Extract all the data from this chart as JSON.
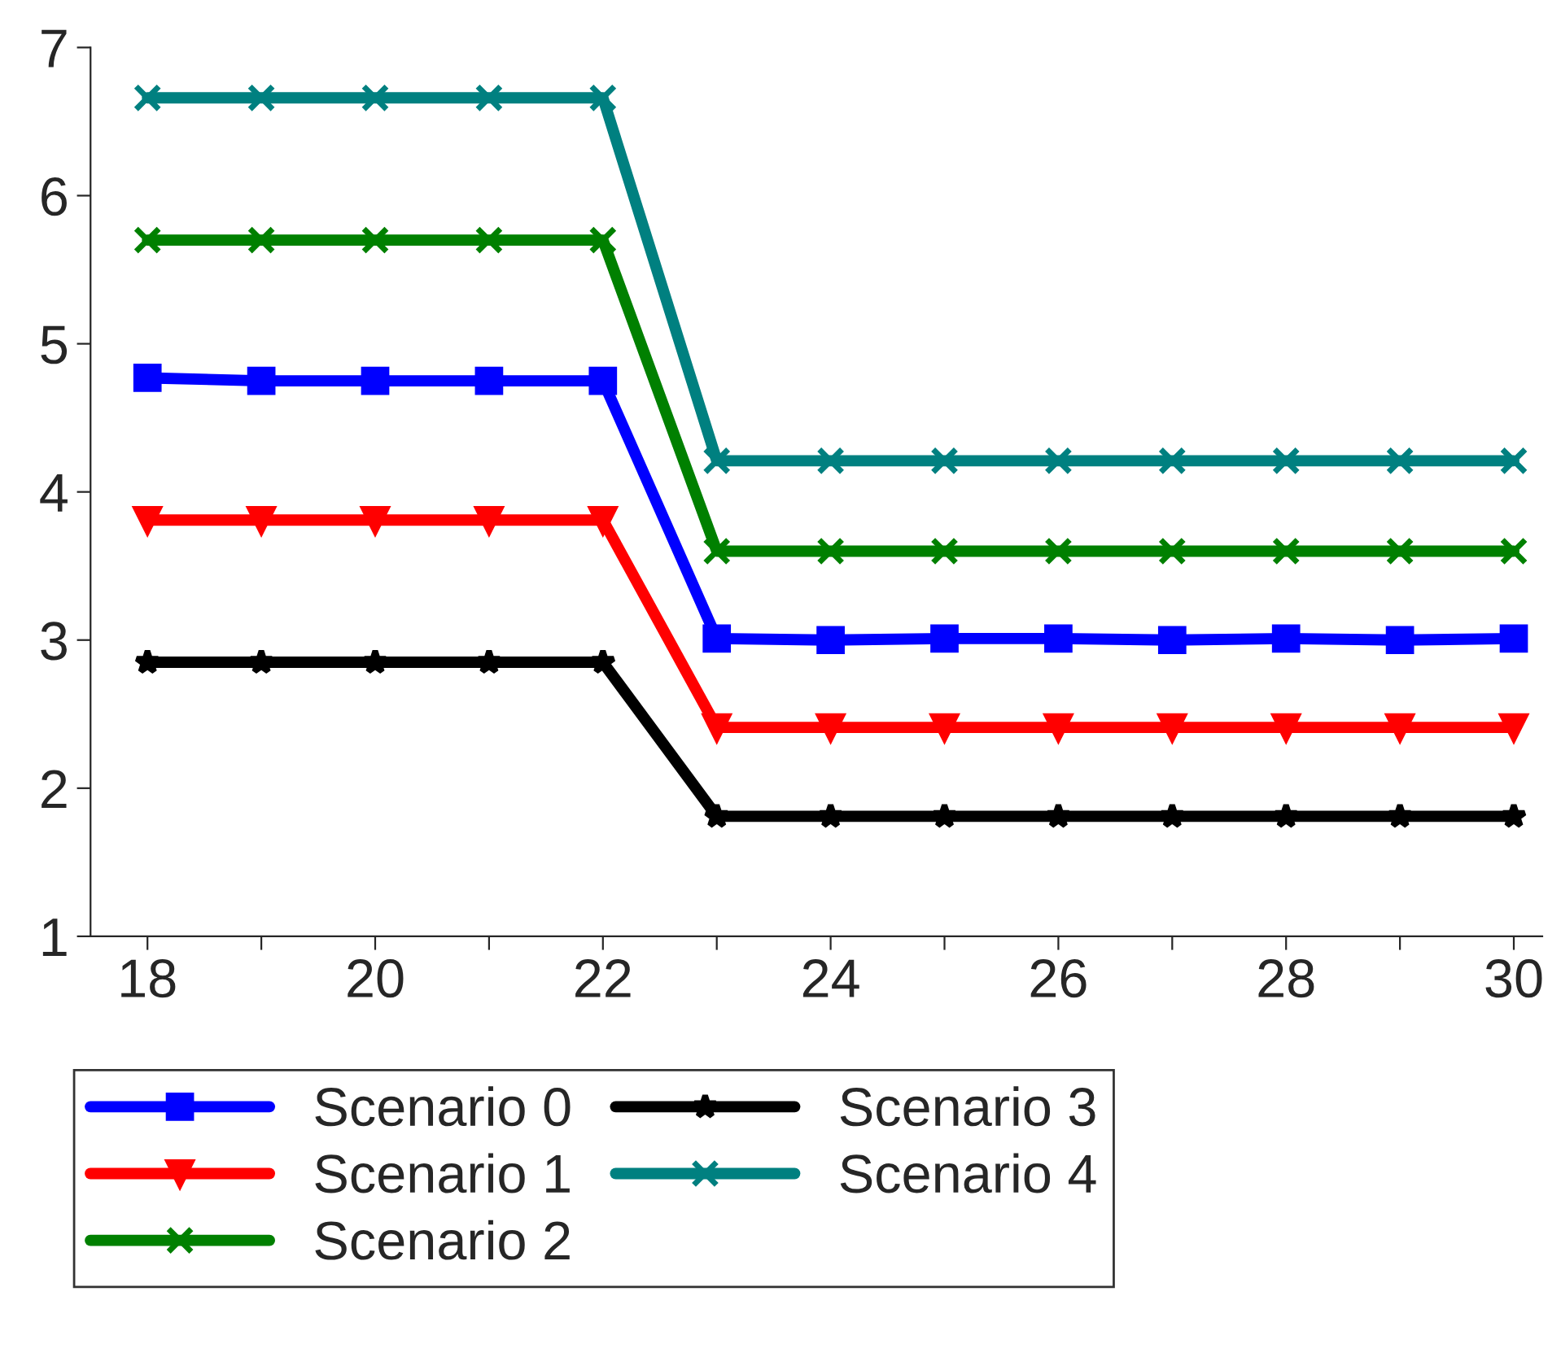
{
  "chart_data": {
    "type": "line",
    "x": [
      18,
      19,
      20,
      21,
      22,
      23,
      24,
      25,
      26,
      27,
      28,
      29,
      30
    ],
    "series": [
      {
        "name": "Scenario 0",
        "color": "#0000ff",
        "marker": "square",
        "values": [
          4.77,
          4.75,
          4.75,
          4.75,
          4.75,
          3.01,
          3.0,
          3.01,
          3.01,
          3.0,
          3.01,
          3.0,
          3.01
        ]
      },
      {
        "name": "Scenario 1",
        "color": "#ff0000",
        "marker": "triangle",
        "values": [
          3.81,
          3.81,
          3.81,
          3.81,
          3.81,
          2.41,
          2.41,
          2.41,
          2.41,
          2.41,
          2.41,
          2.41,
          2.41
        ]
      },
      {
        "name": "Scenario 2",
        "color": "#008000",
        "marker": "cross",
        "values": [
          5.7,
          5.7,
          5.7,
          5.7,
          5.7,
          3.6,
          3.6,
          3.6,
          3.6,
          3.6,
          3.6,
          3.6,
          3.6
        ]
      },
      {
        "name": "Scenario 3",
        "color": "#000000",
        "marker": "star",
        "values": [
          2.85,
          2.85,
          2.85,
          2.85,
          2.85,
          1.81,
          1.81,
          1.81,
          1.81,
          1.81,
          1.81,
          1.81,
          1.81
        ]
      },
      {
        "name": "Scenario 4",
        "color": "#008080",
        "marker": "cross",
        "values": [
          6.66,
          6.66,
          6.66,
          6.66,
          6.66,
          4.21,
          4.21,
          4.21,
          4.21,
          4.21,
          4.21,
          4.21,
          4.21
        ]
      }
    ],
    "xlim": [
      17.5,
      30.25
    ],
    "xticks": [
      18,
      {
        "value": 19,
        "label": null
      },
      20,
      {
        "value": 21,
        "label": null
      },
      22,
      {
        "value": 23,
        "label": null
      },
      24,
      {
        "value": 25,
        "label": null
      },
      26,
      {
        "value": 27,
        "label": null
      },
      28,
      {
        "value": 29,
        "label": null
      },
      30
    ],
    "ylim": [
      1,
      7
    ],
    "yticks": [
      1,
      2,
      3,
      4,
      5,
      6,
      7
    ],
    "grid": false,
    "legend": "bottom",
    "line_style": "solid"
  }
}
